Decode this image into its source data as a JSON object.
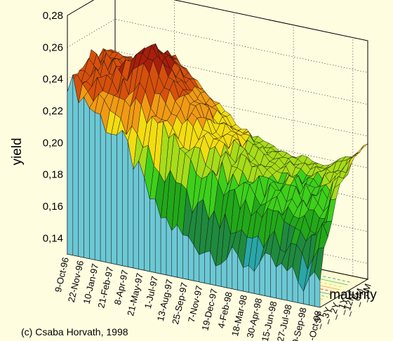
{
  "chart_data": {
    "type": "surface",
    "zlabel": "yield",
    "ylabel": "maturity",
    "z_ticks": [
      "0,28",
      "0,26",
      "0,24",
      "0,22",
      "0,20",
      "0,18",
      "0,16",
      "0,14"
    ],
    "zlim": [
      0.13,
      0.28
    ],
    "date_ticks": [
      "9-Oct-96",
      "22-Nov-96",
      "10-Jan-97",
      "21-Feb-97",
      "8-Apr-97",
      "21-May-97",
      "1-Jul-97",
      "13-Aug-97",
      "25-Sep-97",
      "7-Nov-97",
      "19-Dec-97",
      "4-Feb-98",
      "18-Mar-98",
      "30-Apr-98",
      "15-Jun-98",
      "27-Jul-98",
      "9-Sep-98",
      "21-Oct-98"
    ],
    "maturity_ticks": [
      "_5Y",
      "_3Y",
      "_2Y",
      "_1Y",
      "_12M",
      "_6M",
      "_3M"
    ],
    "series": [
      {
        "name": "_5Y",
        "x": [
          "9-Oct-96",
          "10-Jan-97",
          "8-Apr-97",
          "1-Jul-97",
          "25-Sep-97",
          "19-Dec-97",
          "18-Mar-98",
          "15-Jun-98",
          "9-Sep-98",
          "21-Oct-98"
        ],
        "values": [
          0.24,
          0.222,
          0.205,
          0.168,
          0.155,
          0.15,
          0.148,
          0.15,
          0.142,
          0.15
        ]
      },
      {
        "name": "_3Y",
        "x": [
          "9-Oct-96",
          "10-Jan-97",
          "8-Apr-97",
          "1-Jul-97",
          "25-Sep-97",
          "19-Dec-97",
          "18-Mar-98",
          "15-Jun-98",
          "9-Sep-98",
          "21-Oct-98"
        ],
        "values": [
          0.243,
          0.232,
          0.228,
          0.215,
          0.2,
          0.188,
          0.18,
          0.176,
          0.17,
          0.175
        ]
      },
      {
        "name": "_2Y",
        "x": [
          "9-Oct-96",
          "10-Jan-97",
          "8-Apr-97",
          "1-Jul-97",
          "25-Sep-97",
          "19-Dec-97",
          "18-Mar-98",
          "15-Jun-98",
          "9-Sep-98",
          "21-Oct-98"
        ],
        "values": [
          0.245,
          0.24,
          0.25,
          0.226,
          0.21,
          0.2,
          0.19,
          0.186,
          0.18,
          0.19
        ]
      },
      {
        "name": "_1Y",
        "x": [
          "9-Oct-96",
          "10-Jan-97",
          "8-Apr-97",
          "1-Jul-97",
          "25-Sep-97",
          "19-Dec-97",
          "18-Mar-98",
          "15-Jun-98",
          "9-Sep-98",
          "21-Oct-98"
        ],
        "values": [
          0.245,
          0.243,
          0.258,
          0.232,
          0.216,
          0.206,
          0.196,
          0.19,
          0.19,
          0.205
        ]
      },
      {
        "name": "_12M",
        "x": [
          "9-Oct-96",
          "10-Jan-97",
          "8-Apr-97",
          "1-Jul-97",
          "25-Sep-97",
          "19-Dec-97",
          "18-Mar-98",
          "15-Jun-98",
          "9-Sep-98",
          "21-Oct-98"
        ],
        "values": [
          0.244,
          0.242,
          0.256,
          0.232,
          0.216,
          0.206,
          0.198,
          0.192,
          0.196,
          0.21
        ]
      },
      {
        "name": "_6M",
        "x": [
          "9-Oct-96",
          "10-Jan-97",
          "8-Apr-97",
          "1-Jul-97",
          "25-Sep-97",
          "19-Dec-97",
          "18-Mar-98",
          "15-Jun-98",
          "9-Sep-98",
          "21-Oct-98"
        ],
        "values": [
          0.242,
          0.238,
          0.25,
          0.23,
          0.214,
          0.204,
          0.198,
          0.195,
          0.2,
          0.212
        ]
      },
      {
        "name": "_3M",
        "x": [
          "9-Oct-96",
          "10-Jan-97",
          "8-Apr-97",
          "1-Jul-97",
          "25-Sep-97",
          "19-Dec-97",
          "18-Mar-98",
          "15-Jun-98",
          "9-Sep-98",
          "21-Oct-98"
        ],
        "values": [
          0.24,
          0.234,
          0.245,
          0.228,
          0.212,
          0.202,
          0.198,
          0.196,
          0.205,
          0.215
        ]
      }
    ],
    "colormap": [
      "#7a0a06",
      "#a81f0c",
      "#d6500c",
      "#f09a14",
      "#f2dc12",
      "#a6dc1a",
      "#3ecf1c",
      "#22a81a",
      "#1f8a3e",
      "#2aa6a6",
      "#58c2cf"
    ],
    "background": "#fffde0"
  },
  "credit": "(c) Csaba Horvath, 1998"
}
